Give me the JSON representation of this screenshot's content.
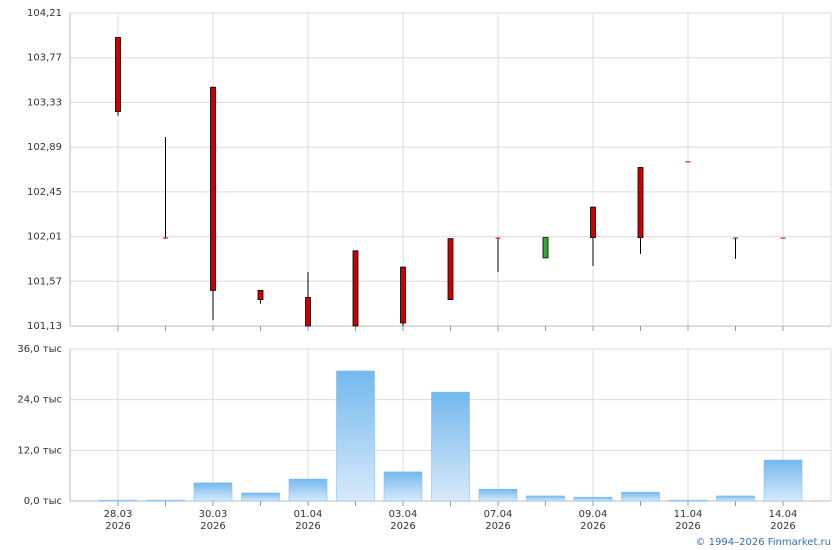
{
  "chart_data": [
    {
      "type": "candlestick",
      "open": [
        103.97,
        102.0,
        103.48,
        101.48,
        101.41,
        101.87,
        101.71,
        101.99,
        102.0,
        101.8,
        102.3,
        102.69,
        102.75,
        102.0,
        102.0
      ],
      "high": [
        103.97,
        102.99,
        103.48,
        101.48,
        101.66,
        101.87,
        101.71,
        101.99,
        102.0,
        102.0,
        102.3,
        102.69,
        102.75,
        102.0,
        102.0
      ],
      "low": [
        103.2,
        102.0,
        101.19,
        101.35,
        101.13,
        101.13,
        101.13,
        101.39,
        101.66,
        101.8,
        101.72,
        101.84,
        102.75,
        101.79,
        102.0
      ],
      "close": [
        103.24,
        102.0,
        101.48,
        101.39,
        101.13,
        101.13,
        101.16,
        101.39,
        102.0,
        102.0,
        102.0,
        102.0,
        102.75,
        102.0,
        102.0
      ],
      "up_color": "#33aa33",
      "down_color": "#cc0000",
      "ylim": [
        101.13,
        104.21
      ],
      "yticks": [
        {
          "value": 101.13,
          "label": "101,13"
        },
        {
          "value": 101.57,
          "label": "101,57"
        },
        {
          "value": 102.01,
          "label": "102,01"
        },
        {
          "value": 102.45,
          "label": "102,45"
        },
        {
          "value": 102.89,
          "label": "102,89"
        },
        {
          "value": 103.33,
          "label": "103,33"
        },
        {
          "value": 103.77,
          "label": "103,77"
        },
        {
          "value": 104.21,
          "label": "104,21"
        }
      ],
      "grid": true
    },
    {
      "type": "bar",
      "categories": [
        "28.03",
        null,
        "30.03",
        null,
        "01.04",
        null,
        "03.04",
        null,
        "07.04",
        null,
        "09.04",
        null,
        "11.04",
        null,
        "14.04"
      ],
      "category_years": [
        "2026",
        null,
        "2026",
        null,
        "2026",
        null,
        "2026",
        null,
        "2026",
        null,
        "2026",
        null,
        "2026",
        null,
        "2026"
      ],
      "values": [
        0.2,
        0.2,
        4.3,
        1.9,
        5.2,
        30.8,
        6.9,
        25.8,
        2.8,
        1.2,
        0.9,
        2.1,
        0.2,
        1.2,
        9.7
      ],
      "color": "#74b8ee",
      "ylim": [
        0,
        36
      ],
      "yticks": [
        {
          "value": 0,
          "label": "0,0 тыс"
        },
        {
          "value": 12,
          "label": "12,0 тыс"
        },
        {
          "value": 24,
          "label": "24,0 тыс"
        },
        {
          "value": 36,
          "label": "36,0 тыс"
        }
      ],
      "grid": true
    }
  ],
  "copyright": "© 1994–2026 Finmarket.ru"
}
